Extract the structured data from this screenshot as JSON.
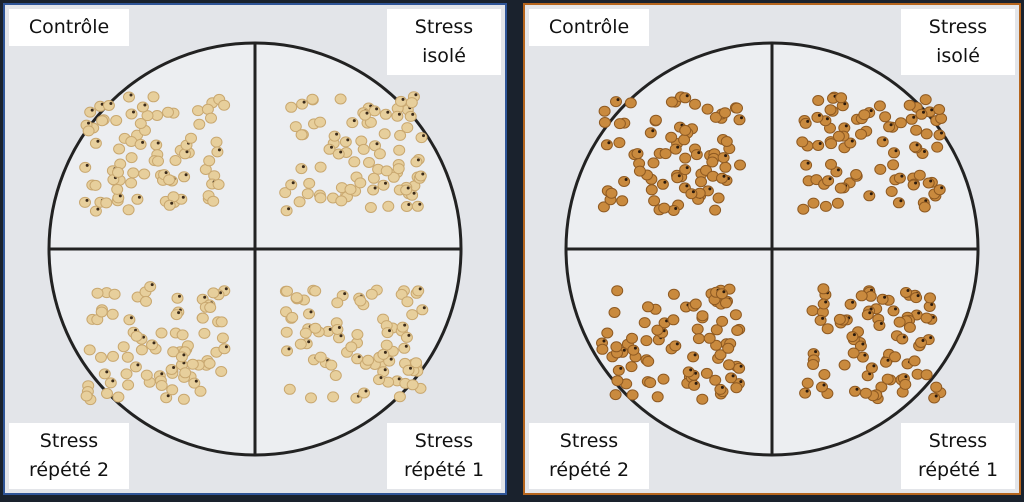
{
  "panels": [
    {
      "labels": {
        "top_left": [
          "Contrôle"
        ],
        "top_right": [
          "Stress",
          "isolé"
        ],
        "bottom_left": [
          "Stress",
          "répété 2"
        ],
        "bottom_right": [
          "Stress",
          "répété 1"
        ]
      }
    },
    {
      "labels": {
        "top_left": [
          "Contrôle"
        ],
        "top_right": [
          "Stress",
          "isolé"
        ],
        "bottom_left": [
          "Stress",
          "répété 2"
        ],
        "bottom_right": [
          "Stress",
          "répété 1"
        ]
      }
    }
  ]
}
